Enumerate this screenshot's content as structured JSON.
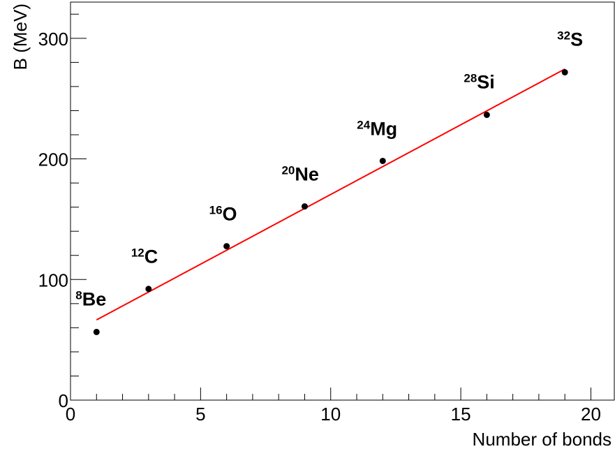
{
  "chart_data": {
    "type": "scatter",
    "title": "",
    "xlabel": "Number of bonds",
    "ylabel": "B (MeV)",
    "xlim": [
      0,
      20.9
    ],
    "ylim": [
      0,
      330
    ],
    "x_ticks": [
      "0",
      "5",
      "10",
      "15",
      "20"
    ],
    "y_ticks": [
      "0",
      "100",
      "200",
      "300"
    ],
    "grid": false,
    "legend": "none",
    "points": [
      {
        "x": 1,
        "y": 56.5,
        "mass": "8",
        "symbol": "Be"
      },
      {
        "x": 3,
        "y": 92.2,
        "mass": "12",
        "symbol": "C"
      },
      {
        "x": 6,
        "y": 127.6,
        "mass": "16",
        "symbol": "O"
      },
      {
        "x": 9,
        "y": 160.6,
        "mass": "20",
        "symbol": "Ne"
      },
      {
        "x": 12,
        "y": 198.3,
        "mass": "24",
        "symbol": "Mg"
      },
      {
        "x": 16,
        "y": 236.5,
        "mass": "28",
        "symbol": "Si"
      },
      {
        "x": 19,
        "y": 271.8,
        "mass": "32",
        "symbol": "S"
      }
    ],
    "fit_line": {
      "x": [
        1,
        19
      ],
      "y": [
        66.5,
        274.5
      ],
      "color": "#ff0000"
    },
    "marker_color": "#000000"
  }
}
